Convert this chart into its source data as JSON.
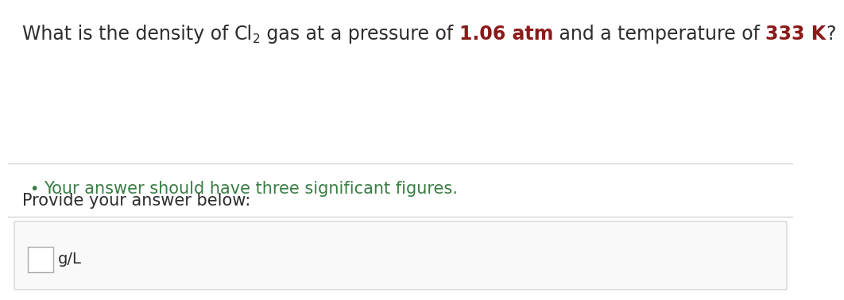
{
  "background_color": "#ffffff",
  "question_line1_parts": [
    {
      "text": "What is the density of ",
      "style": "normal",
      "color": "#2d2d2d",
      "size": 17
    },
    {
      "text": "Cl",
      "style": "normal_chem",
      "color": "#2d2d2d",
      "size": 17
    },
    {
      "text": "2",
      "style": "subscript",
      "color": "#2d2d2d",
      "size": 11
    },
    {
      "text": " gas at a pressure of ",
      "style": "normal",
      "color": "#2d2d2d",
      "size": 17
    },
    {
      "text": "1.06 atm",
      "style": "bold",
      "color": "#8b1a1a",
      "size": 17
    },
    {
      "text": " and a temperature of ",
      "style": "normal",
      "color": "#2d2d2d",
      "size": 17
    },
    {
      "text": "333 K",
      "style": "bold",
      "color": "#8b1a1a",
      "size": 17
    },
    {
      "text": "?",
      "style": "normal",
      "color": "#2d2d2d",
      "size": 17
    }
  ],
  "bullet_text": "Your answer should have three significant figures.",
  "bullet_color": "#3a7d44",
  "bullet_size": 15,
  "provide_text": "Provide your answer below:",
  "provide_color": "#2d2d2d",
  "provide_size": 15,
  "unit_text": "g/L",
  "unit_color": "#2d2d2d",
  "unit_size": 14,
  "divider_color": "#cccccc",
  "box_color": "#ffffff",
  "box_border_color": "#aaaaaa",
  "fig_width": 9.88,
  "fig_height": 3.58
}
